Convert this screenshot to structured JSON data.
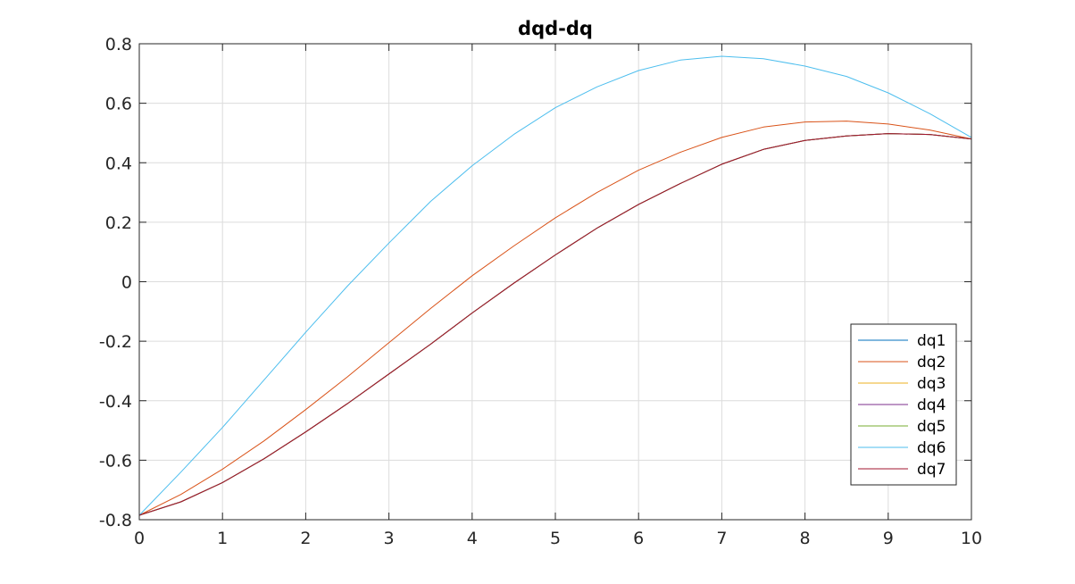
{
  "chart_data": {
    "type": "line",
    "title": "dqd-dq",
    "xlabel": "",
    "ylabel": "",
    "xlim": [
      0,
      10
    ],
    "ylim": [
      -0.8,
      0.8
    ],
    "xticks": [
      0,
      1,
      2,
      3,
      4,
      5,
      6,
      7,
      8,
      9,
      10
    ],
    "yticks": [
      -0.8,
      -0.6,
      -0.4,
      -0.2,
      0,
      0.2,
      0.4,
      0.6,
      0.8
    ],
    "xtick_labels": [
      "0",
      "1",
      "2",
      "3",
      "4",
      "5",
      "6",
      "7",
      "8",
      "9",
      "10"
    ],
    "ytick_labels": [
      "-0.8",
      "-0.6",
      "-0.4",
      "-0.2",
      "0",
      "0.2",
      "0.4",
      "0.6",
      "0.8"
    ],
    "grid": true,
    "legend_position": "bottom-right",
    "x": [
      0,
      0.5,
      1,
      1.5,
      2,
      2.5,
      3,
      3.5,
      4,
      4.5,
      5,
      5.5,
      6,
      6.5,
      7,
      7.5,
      8,
      8.5,
      9,
      9.5,
      10
    ],
    "series": [
      {
        "name": "dq1",
        "color": "#0072BD",
        "values": [
          -0.785,
          -0.74,
          -0.675,
          -0.595,
          -0.505,
          -0.41,
          -0.31,
          -0.21,
          -0.105,
          -0.005,
          0.09,
          0.18,
          0.26,
          0.33,
          0.395,
          0.445,
          0.475,
          0.49,
          0.498,
          0.495,
          0.48
        ]
      },
      {
        "name": "dq2",
        "color": "#D95319",
        "values": [
          -0.785,
          -0.715,
          -0.63,
          -0.535,
          -0.43,
          -0.32,
          -0.205,
          -0.09,
          0.02,
          0.12,
          0.215,
          0.3,
          0.375,
          0.435,
          0.485,
          0.52,
          0.537,
          0.54,
          0.53,
          0.51,
          0.48
        ]
      },
      {
        "name": "dq3",
        "color": "#EDB120",
        "values": [
          -0.785,
          -0.74,
          -0.675,
          -0.595,
          -0.505,
          -0.41,
          -0.31,
          -0.21,
          -0.105,
          -0.005,
          0.09,
          0.18,
          0.26,
          0.33,
          0.395,
          0.445,
          0.475,
          0.49,
          0.498,
          0.495,
          0.48
        ]
      },
      {
        "name": "dq4",
        "color": "#7E2F8E",
        "values": [
          -0.785,
          -0.74,
          -0.675,
          -0.595,
          -0.505,
          -0.41,
          -0.31,
          -0.21,
          -0.105,
          -0.005,
          0.09,
          0.18,
          0.26,
          0.33,
          0.395,
          0.445,
          0.475,
          0.49,
          0.498,
          0.495,
          0.48
        ]
      },
      {
        "name": "dq5",
        "color": "#77AC30",
        "values": [
          -0.785,
          -0.74,
          -0.675,
          -0.595,
          -0.505,
          -0.41,
          -0.31,
          -0.21,
          -0.105,
          -0.005,
          0.09,
          0.18,
          0.26,
          0.33,
          0.395,
          0.445,
          0.475,
          0.49,
          0.498,
          0.495,
          0.48
        ]
      },
      {
        "name": "dq6",
        "color": "#4DBEEE",
        "values": [
          -0.785,
          -0.64,
          -0.49,
          -0.33,
          -0.17,
          -0.015,
          0.13,
          0.27,
          0.39,
          0.495,
          0.585,
          0.655,
          0.71,
          0.745,
          0.758,
          0.75,
          0.725,
          0.69,
          0.635,
          0.565,
          0.485
        ]
      },
      {
        "name": "dq7",
        "color": "#A2142F",
        "values": [
          -0.785,
          -0.74,
          -0.675,
          -0.595,
          -0.505,
          -0.41,
          -0.31,
          -0.21,
          -0.105,
          -0.005,
          0.09,
          0.18,
          0.26,
          0.33,
          0.395,
          0.445,
          0.475,
          0.49,
          0.498,
          0.495,
          0.48
        ]
      }
    ]
  }
}
